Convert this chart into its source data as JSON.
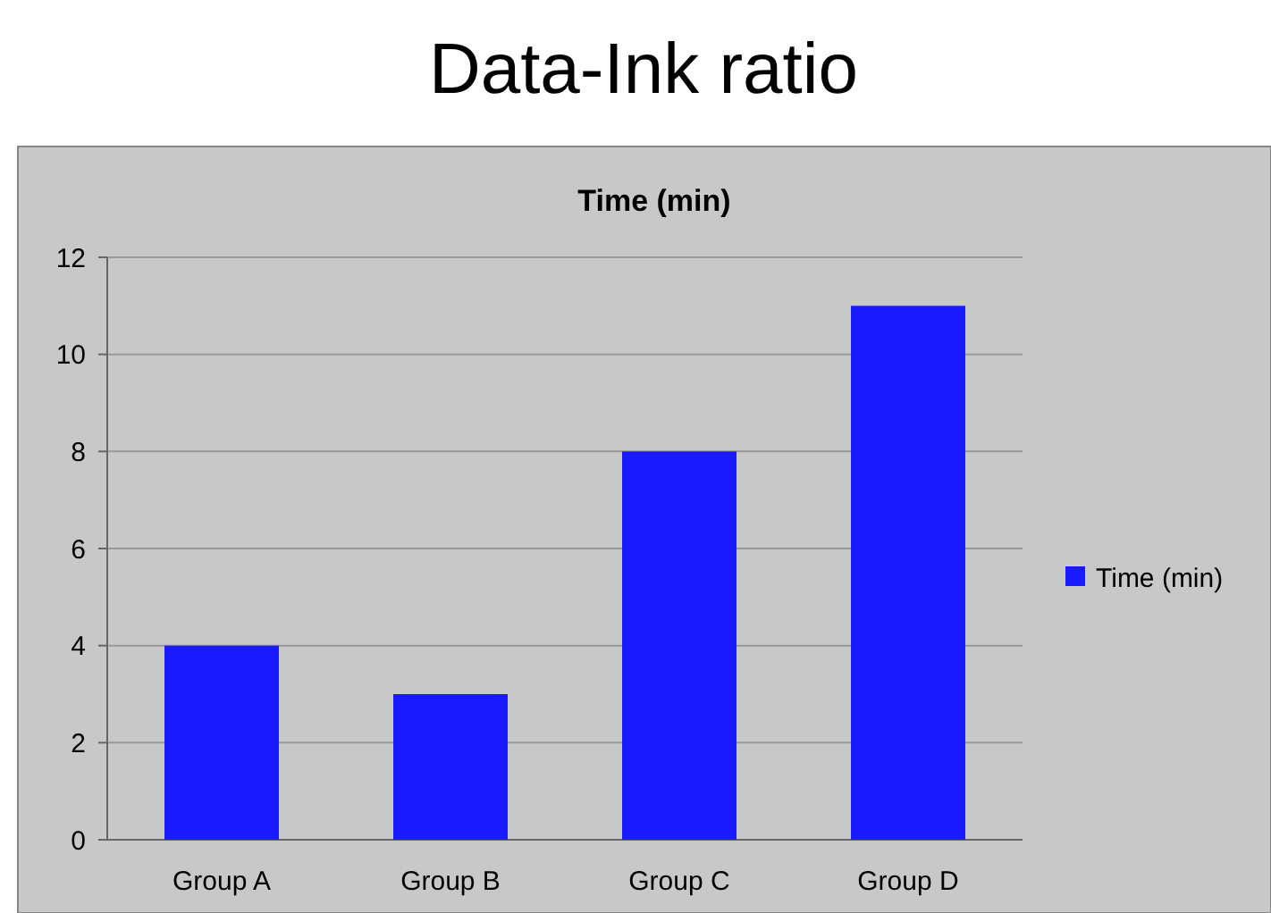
{
  "chart_data": {
    "type": "bar",
    "title": "Data-Ink ratio",
    "subtitle": "Time (min)",
    "categories": [
      "Group A",
      "Group B",
      "Group C",
      "Group D"
    ],
    "series": [
      {
        "name": "Time (min)",
        "color": "#1a1aff",
        "values": [
          4,
          3,
          8,
          11
        ]
      }
    ],
    "ylim": [
      0,
      12
    ],
    "yticks": [
      0,
      2,
      4,
      6,
      8,
      10,
      12
    ],
    "grid": "y",
    "legend": "right"
  }
}
